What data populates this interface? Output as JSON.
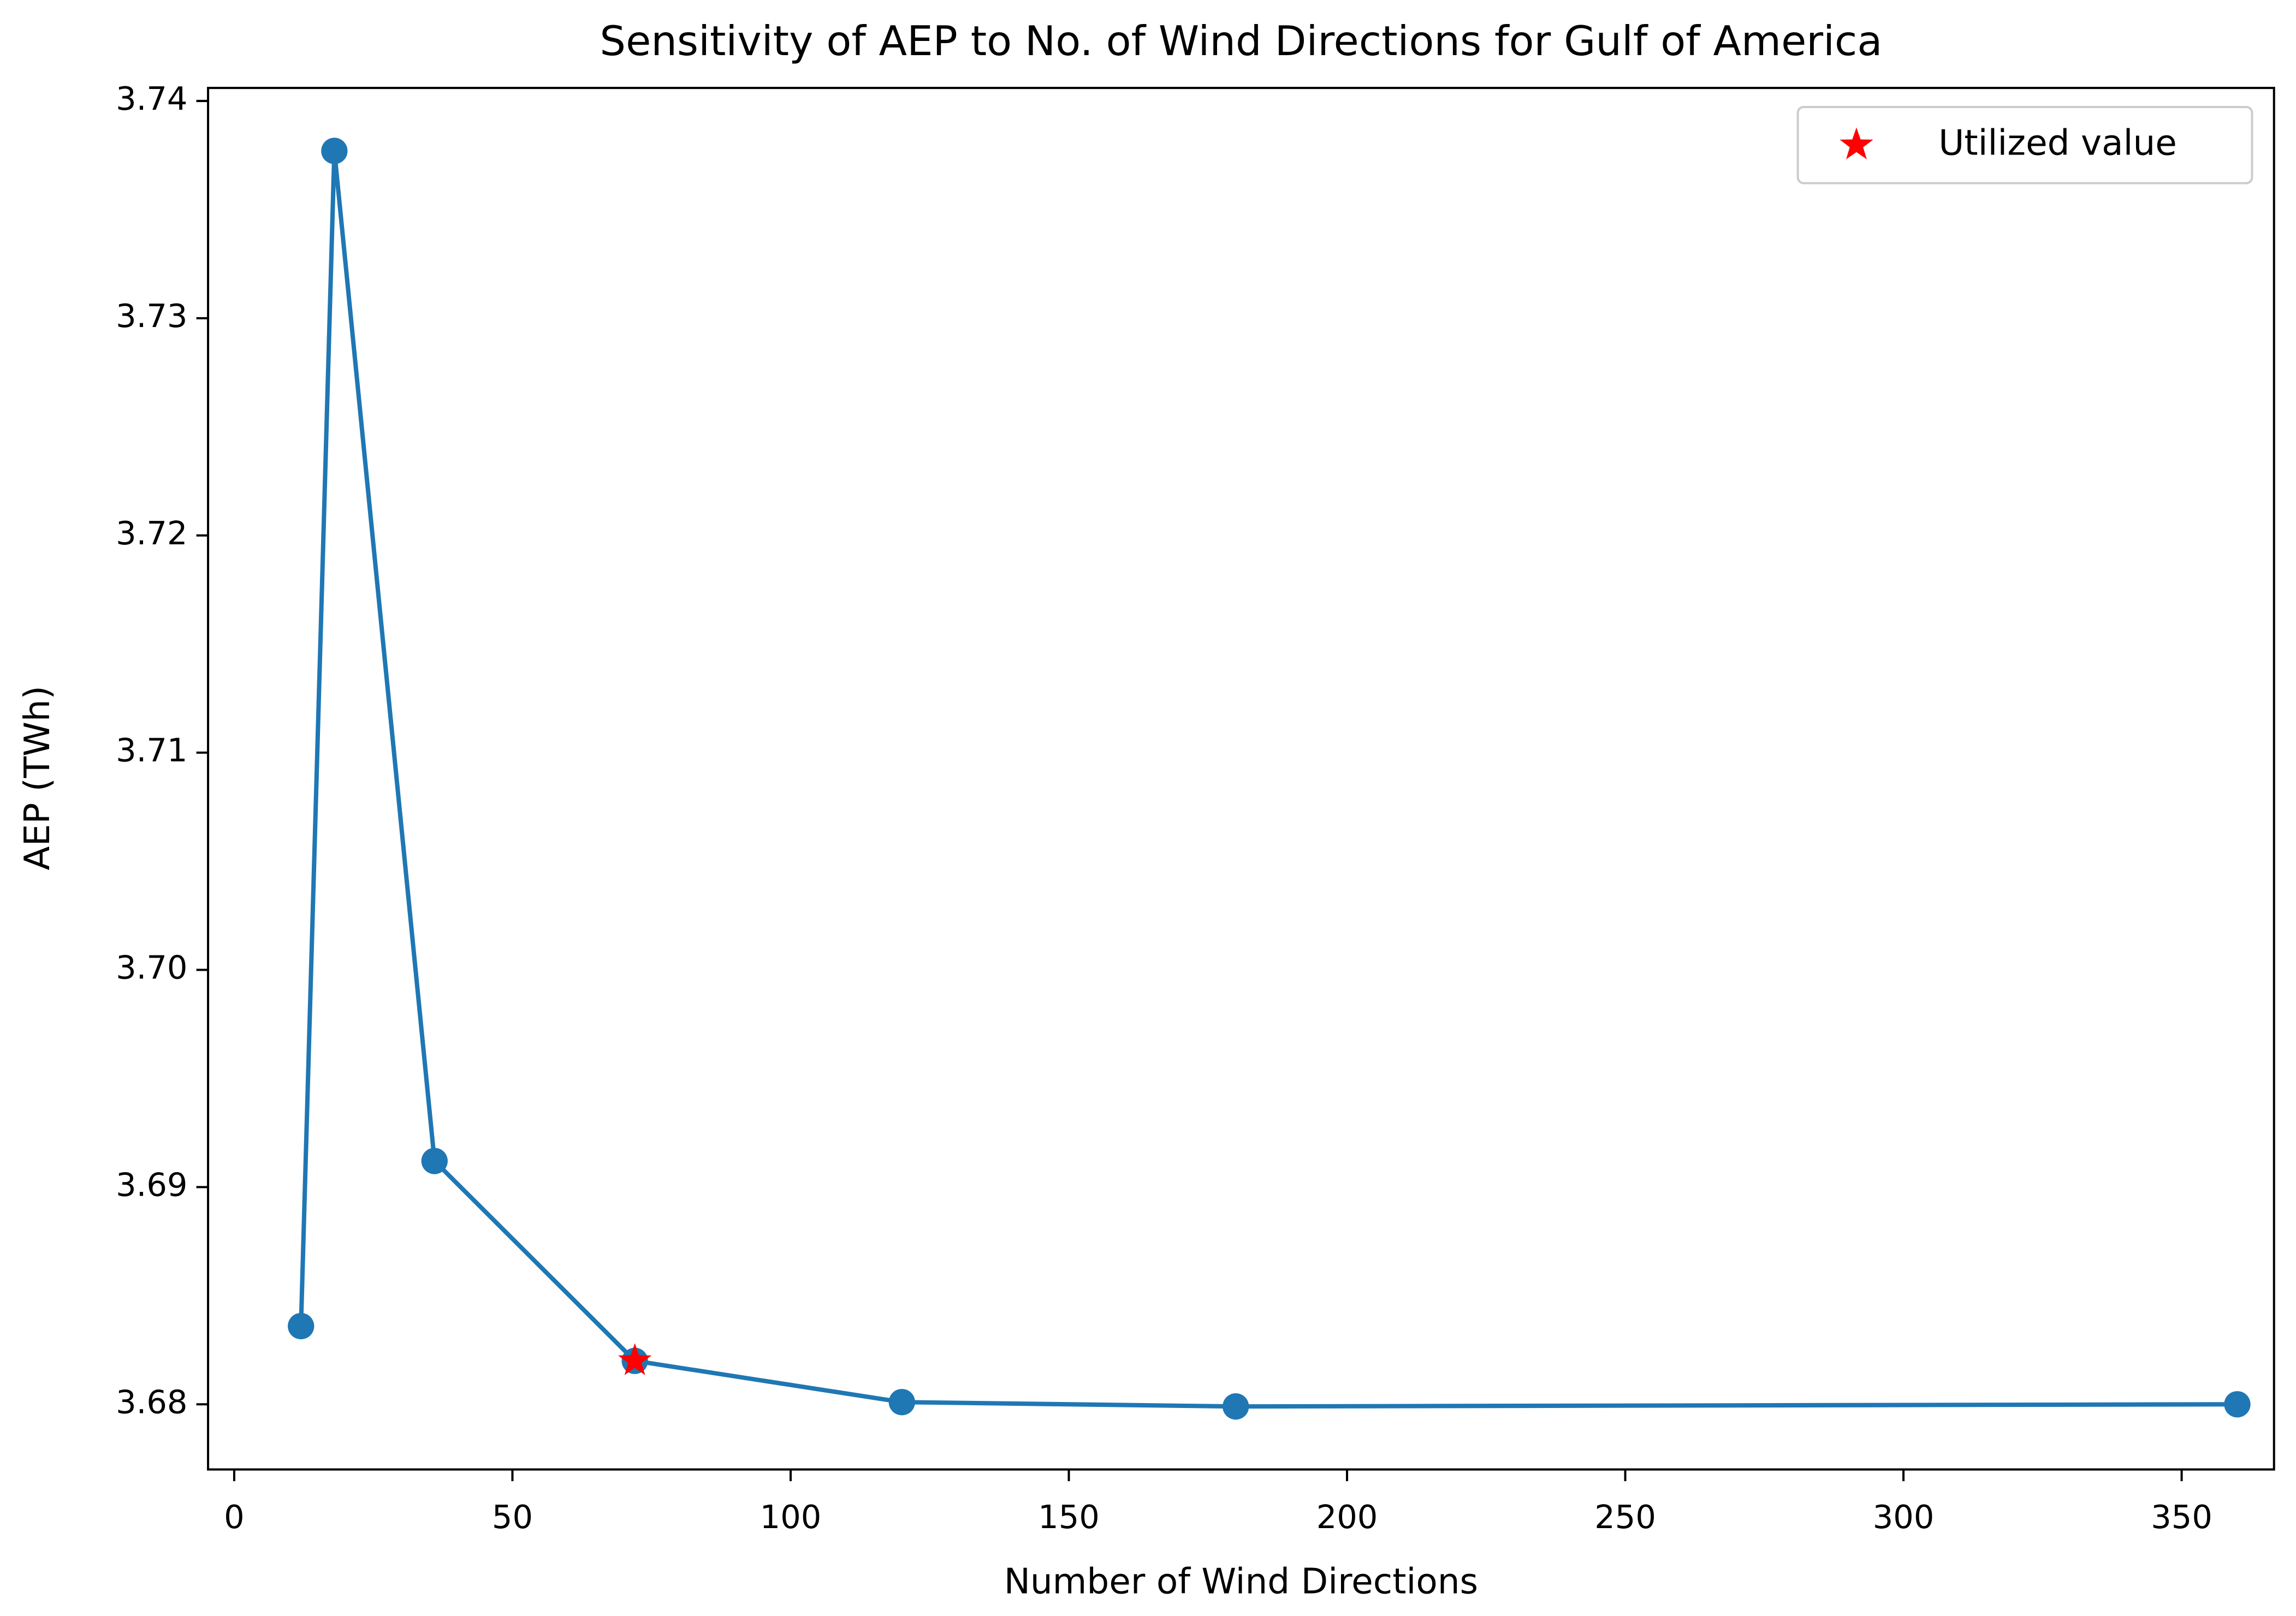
{
  "chart_data": {
    "type": "line",
    "title": "Sensitivity of AEP to No. of Wind Directions for Gulf of America",
    "x_label": "Number of Wind Directions",
    "y_label": "AEP (TWh)",
    "series": [
      {
        "color": "#1f77b4",
        "marker": "circle",
        "line": true,
        "x": [
          12,
          18,
          36,
          72,
          120,
          180,
          360
        ],
        "values": [
          3.6836,
          3.7377,
          3.6912,
          3.682,
          3.6801,
          3.6799,
          3.68
        ]
      },
      {
        "name": "Utilized value",
        "color": "#ff0000",
        "marker": "star",
        "line": false,
        "x": [
          72
        ],
        "values": [
          3.682
        ]
      }
    ],
    "xlim": [
      -4.7,
      366.6
    ],
    "ylim": [
      3.677,
      3.7406
    ],
    "xticks": [
      0,
      50,
      100,
      150,
      200,
      250,
      300,
      350
    ],
    "yticks": [
      {
        "value": 3.68,
        "label": "3.68"
      },
      3.69,
      {
        "value": 3.7,
        "label": "3.70"
      },
      3.71,
      3.72,
      3.73,
      3.74
    ],
    "legend": "upper right",
    "grid": false
  }
}
